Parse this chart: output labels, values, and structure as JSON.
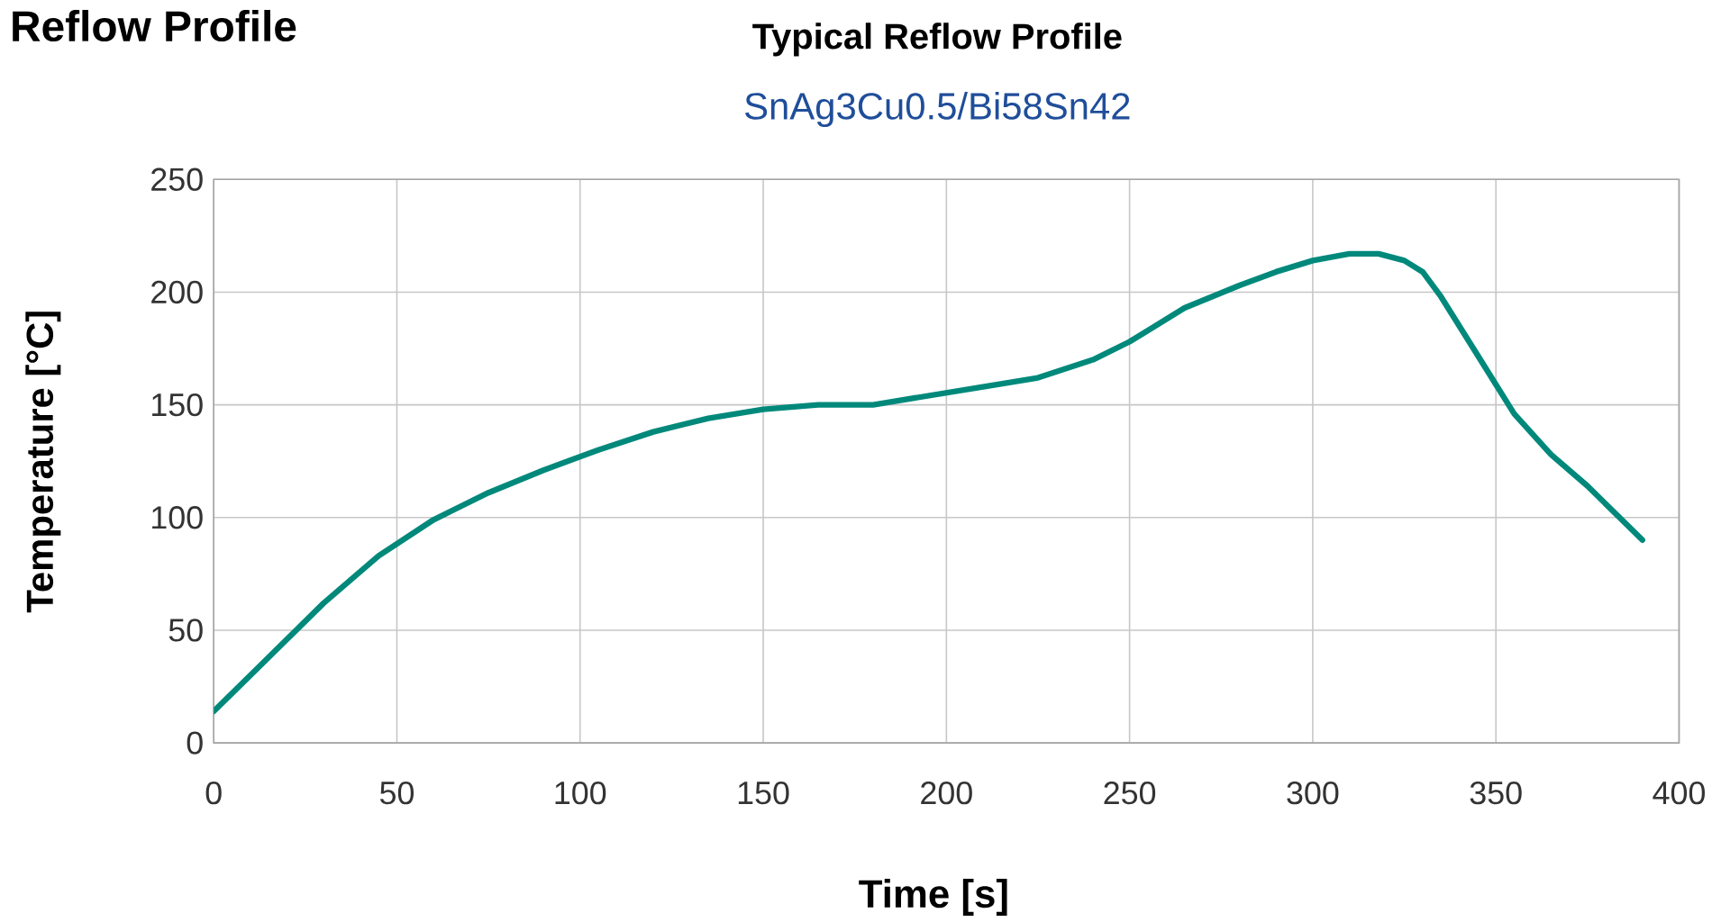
{
  "chart_data": {
    "type": "line",
    "title": "Typical Reflow Profile",
    "subtitle": "SnAg3Cu0.5/Bi58Sn42",
    "xlabel": "Time [s]",
    "ylabel": "Temperature [°C]",
    "annotations": [
      "Reflow Profile"
    ],
    "x": [
      0,
      15,
      30,
      45,
      60,
      75,
      90,
      105,
      120,
      135,
      150,
      165,
      180,
      195,
      210,
      225,
      240,
      250,
      265,
      280,
      290,
      300,
      310,
      318,
      325,
      330,
      335,
      345,
      355,
      365,
      375,
      390
    ],
    "series": [
      {
        "color": "#00897b",
        "values": [
          14,
          38,
          62,
          83,
          99,
          111,
          121,
          130,
          138,
          144,
          148,
          150,
          150,
          154,
          158,
          162,
          170,
          178,
          193,
          203,
          209,
          214,
          217,
          217,
          214,
          209,
          198,
          172,
          146,
          128,
          114,
          90
        ]
      }
    ],
    "xlim": [
      0,
      400
    ],
    "ylim": [
      0,
      250
    ],
    "xticks": [
      0,
      50,
      100,
      150,
      200,
      250,
      300,
      350,
      400
    ],
    "yticks": [
      0,
      50,
      100,
      150,
      200,
      250
    ],
    "grid": true
  }
}
